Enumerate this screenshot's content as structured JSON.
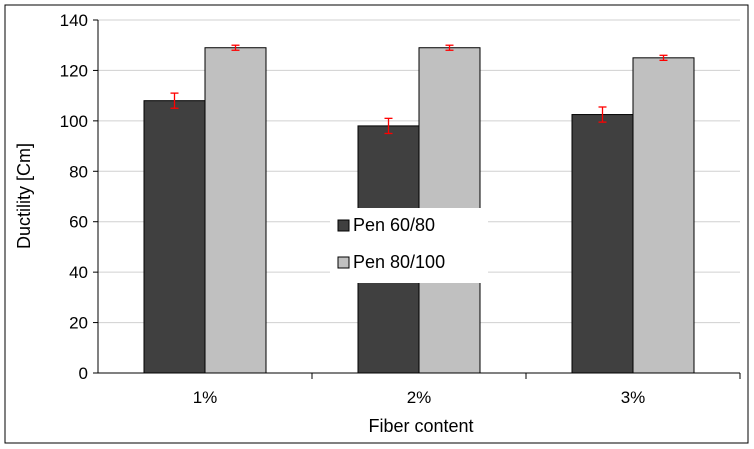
{
  "chart_data": {
    "type": "bar",
    "title": "",
    "xlabel": "Fiber content",
    "ylabel": "Ductility [Cm]",
    "categories": [
      "1%",
      "2%",
      "3%"
    ],
    "ylim": [
      0,
      140
    ],
    "yticks": [
      0,
      20,
      40,
      60,
      80,
      100,
      120,
      140
    ],
    "grid": true,
    "legend_position": "center",
    "series": [
      {
        "name": "Pen 60/80",
        "color": "#404040",
        "values": [
          108,
          98,
          102.5
        ],
        "errors": [
          3,
          3,
          3
        ]
      },
      {
        "name": "Pen 80/100",
        "color": "#c0c0c0",
        "values": [
          129,
          129,
          125
        ],
        "errors": [
          1,
          1,
          1
        ]
      }
    ],
    "error_bar_color": "#ff0000"
  }
}
